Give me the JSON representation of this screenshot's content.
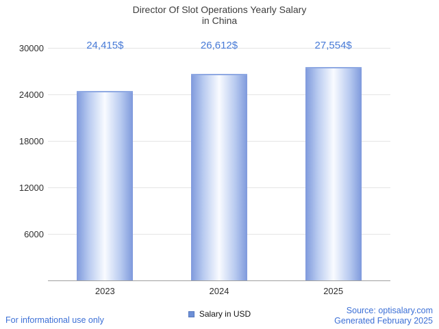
{
  "title": {
    "line1": "Director Of Slot Operations Yearly Salary",
    "line2": "in China"
  },
  "chart_data": {
    "type": "bar",
    "title": "Director Of Slot Operations Yearly Salary in China",
    "categories": [
      "2023",
      "2024",
      "2025"
    ],
    "values": [
      24415,
      26612,
      27554
    ],
    "value_labels": [
      "24,415$",
      "26,612$",
      "27,554$"
    ],
    "xlabel": "",
    "ylabel": "",
    "ylim": [
      0,
      30000
    ],
    "yticks": [
      6000,
      12000,
      18000,
      24000,
      30000
    ],
    "grid": true,
    "legend": [
      "Salary in USD"
    ],
    "legend_position": "bottom",
    "bar_edge_color": "#7e99dc",
    "bar_center_color": "#f9fbff",
    "value_label_color": "#4679d6"
  },
  "legend": {
    "label": "Salary in USD"
  },
  "footer": {
    "left": "For informational use only",
    "source": "Source: optisalary.com",
    "generated": "Generated February 2025"
  }
}
